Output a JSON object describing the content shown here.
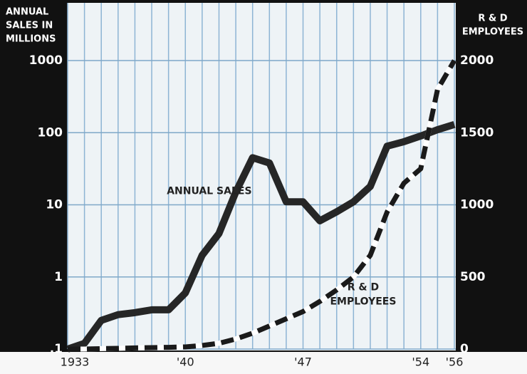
{
  "chart_data": {
    "type": "line",
    "y_title": [
      "ANNUAL",
      "SALES IN",
      "MILLIONS"
    ],
    "y2_title": [
      "R & D",
      "EMPLOYEES"
    ],
    "annotations": [
      {
        "text": [
          "ANNUAL SALES"
        ],
        "series": 0,
        "at": 1941
      },
      {
        "text": [
          "R & D",
          "EMPLOYEES"
        ],
        "series": 1,
        "at": 1951
      }
    ],
    "x": [
      1933,
      1934,
      1935,
      1936,
      1937,
      1938,
      1939,
      1940,
      1941,
      1942,
      1943,
      1944,
      1945,
      1946,
      1947,
      1948,
      1949,
      1950,
      1951,
      1952,
      1953,
      1954,
      1955,
      1956
    ],
    "xlim": [
      1933,
      1956
    ],
    "xticks": [
      {
        "value": 1933,
        "label": "1933"
      },
      {
        "value": 1940,
        "label": "'40"
      },
      {
        "value": 1947,
        "label": "'47"
      },
      {
        "value": 1954,
        "label": "'54"
      },
      {
        "value": 1956,
        "label": "'56"
      }
    ],
    "x_grid": [
      1933,
      1934,
      1935,
      1936,
      1937,
      1938,
      1939,
      1940,
      1941,
      1942,
      1943,
      1944,
      1945,
      1946,
      1947,
      1948,
      1949,
      1950,
      1951,
      1952,
      1953,
      1954,
      1955,
      1956
    ],
    "ylim": [
      0.1,
      1000
    ],
    "y_log": true,
    "yticks": [
      {
        "value": 0.1,
        "label": ".1"
      },
      1,
      10,
      100,
      1000
    ],
    "y2lim": [
      0,
      2000
    ],
    "y2ticks": [
      0,
      500,
      1000,
      1500,
      2000
    ],
    "grid": true,
    "series": [
      {
        "name": "ANNUAL SALES",
        "color": "#262626",
        "dashed": false,
        "values": [
          0.1,
          0.12,
          0.25,
          0.3,
          0.32,
          0.35,
          0.35,
          0.6,
          2,
          4,
          15,
          45,
          38,
          11,
          11,
          6,
          8,
          11,
          18,
          65,
          75,
          90,
          110,
          130
        ]
      },
      {
        "name": "R & D EMPLOYEES",
        "color": "#1a1a1a",
        "dashed": true,
        "axis": "y2",
        "values": [
          0,
          0,
          3,
          5,
          8,
          10,
          12,
          15,
          25,
          40,
          70,
          110,
          160,
          210,
          260,
          330,
          410,
          500,
          650,
          950,
          1150,
          1250,
          1800,
          2000
        ]
      }
    ]
  }
}
